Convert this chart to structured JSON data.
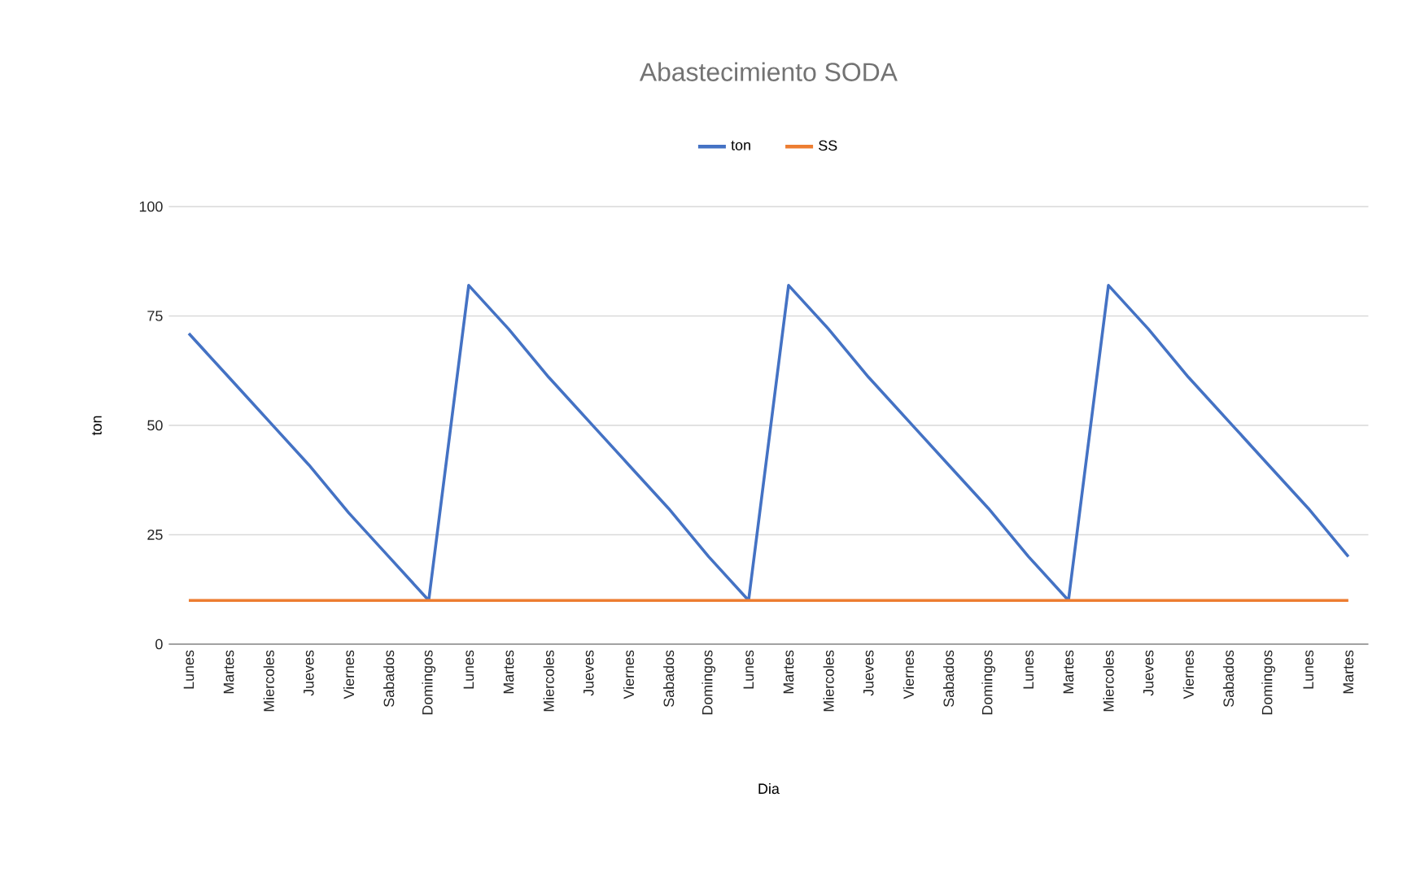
{
  "chart_data": {
    "type": "line",
    "title": "Abastecimiento SODA",
    "xlabel": "Dia",
    "ylabel": "ton",
    "categories": [
      "Lunes",
      "Martes",
      "Miercoles",
      "Jueves",
      "Viernes",
      "Sabados",
      "Domingos",
      "Lunes",
      "Martes",
      "Miercoles",
      "Jueves",
      "Viernes",
      "Sabados",
      "Domingos",
      "Lunes",
      "Martes",
      "Miercoles",
      "Jueves",
      "Viernes",
      "Sabados",
      "Domingos",
      "Lunes",
      "Martes",
      "Miercoles",
      "Jueves",
      "Viernes",
      "Sabados",
      "Domingos",
      "Lunes",
      "Martes"
    ],
    "series": [
      {
        "name": "ton",
        "color": "#4472c4",
        "values": [
          71,
          61,
          51,
          41,
          30,
          20,
          10,
          82,
          72,
          61,
          51,
          41,
          31,
          20,
          10,
          82,
          72,
          61,
          51,
          41,
          31,
          20,
          10,
          82,
          72,
          61,
          51,
          41,
          31,
          20
        ]
      },
      {
        "name": "SS",
        "color": "#ed7d31",
        "values": [
          10,
          10,
          10,
          10,
          10,
          10,
          10,
          10,
          10,
          10,
          10,
          10,
          10,
          10,
          10,
          10,
          10,
          10,
          10,
          10,
          10,
          10,
          10,
          10,
          10,
          10,
          10,
          10,
          10,
          10
        ]
      }
    ],
    "ylim": [
      0,
      100
    ],
    "yticks": [
      0,
      25,
      50,
      75,
      100
    ],
    "grid": "y",
    "legend": "top",
    "marker": "none",
    "line_style": "solid"
  }
}
